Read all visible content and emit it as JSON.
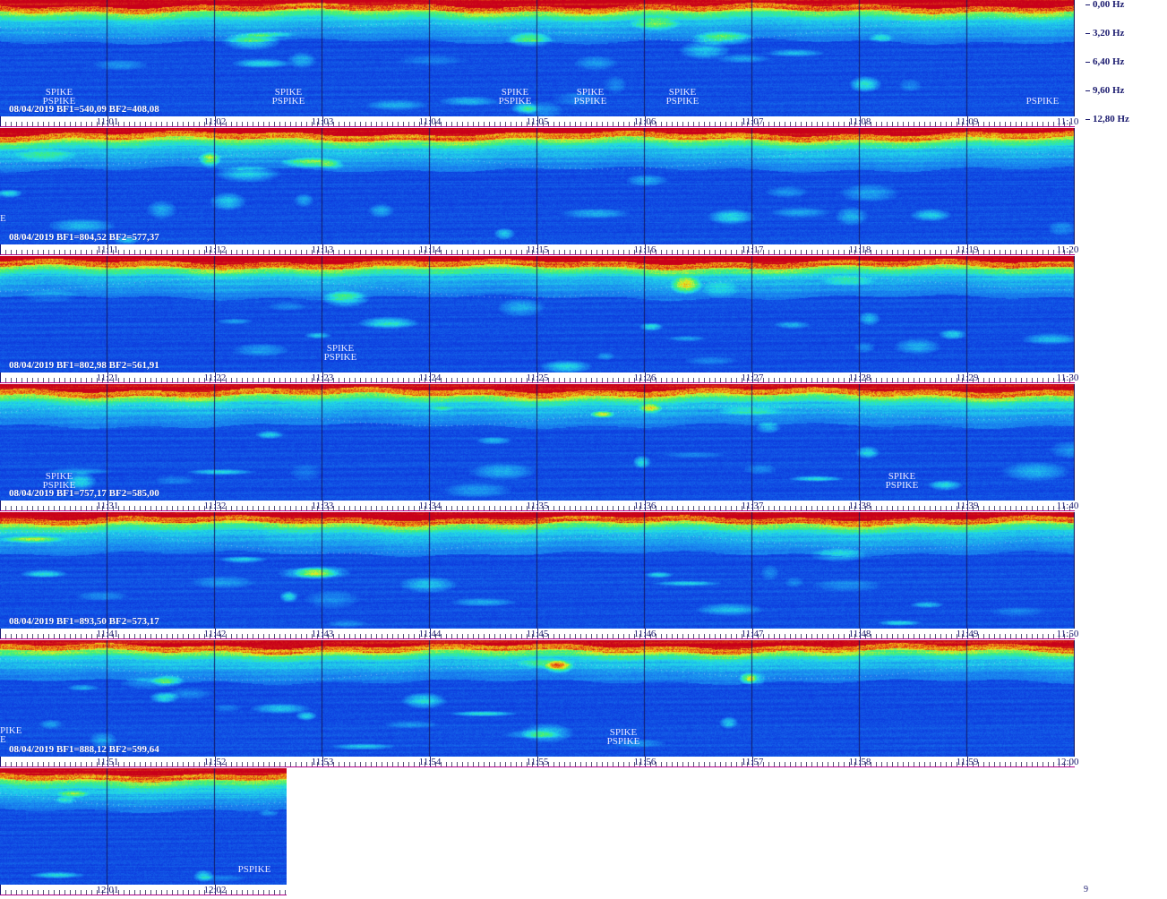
{
  "chart_data": {
    "type": "heatmap",
    "title": "",
    "date": "08/04/2019",
    "yaxis": {
      "labels": [
        "0,00 Hz",
        "3,20 Hz",
        "6,40 Hz",
        "9,60 Hz",
        "12,80 Hz"
      ],
      "range_hz": [
        0,
        12.8
      ]
    },
    "colorscale": [
      "#0a1aa8",
      "#0e3fe0",
      "#1a8af0",
      "#21d9e8",
      "#3ef07a",
      "#e8f020",
      "#f07a10",
      "#c8001a"
    ],
    "rows": [
      {
        "label": "08/04/2019 BF1=540,09 BF2=408,08",
        "ticks": [
          "11:01",
          "11:02",
          "11:03",
          "11:04",
          "11:05",
          "11:06",
          "11:07",
          "11:08",
          "11:09",
          "11:10"
        ],
        "events": [
          {
            "minute": 0.55,
            "lines": [
              "SPIKE",
              "PSPIKE"
            ]
          },
          {
            "minute": 2.68,
            "lines": [
              "SPIKE",
              "PSPIKE"
            ]
          },
          {
            "minute": 4.79,
            "lines": [
              "SPIKE",
              "PSPIKE"
            ]
          },
          {
            "minute": 5.49,
            "lines": [
              "SPIKE",
              "PSPIKE"
            ]
          },
          {
            "minute": 6.35,
            "lines": [
              "SPIKE",
              "PSPIKE"
            ]
          },
          {
            "minute": 9.7,
            "lines": [
              "PSPIKE"
            ]
          }
        ]
      },
      {
        "label": "08/04/2019 BF1=804,52 BF2=577,37",
        "ticks": [
          "11:11",
          "11:12",
          "11:13",
          "11:14",
          "11:15",
          "11:16",
          "11:17",
          "11:18",
          "11:19",
          "11:20"
        ],
        "events": [],
        "edge_text": "E"
      },
      {
        "label": "08/04/2019 BF1=802,98 BF2=561,91",
        "ticks": [
          "11:21",
          "11:22",
          "11:23",
          "11:24",
          "11:25",
          "11:26",
          "11:27",
          "11:28",
          "11:29",
          "11:30"
        ],
        "events": [
          {
            "minute": 3.17,
            "lines": [
              "SPIKE",
              "PSPIKE"
            ]
          }
        ]
      },
      {
        "label": "08/04/2019 BF1=757,17 BF2=585,00",
        "ticks": [
          "11:31",
          "11:32",
          "11:33",
          "11:34",
          "11:35",
          "11:36",
          "11:37",
          "11:38",
          "11:39",
          "11:40"
        ],
        "events": [
          {
            "minute": 0.55,
            "lines": [
              "SPIKE",
              "PSPIKE"
            ]
          },
          {
            "minute": 8.39,
            "lines": [
              "SPIKE",
              "PSPIKE"
            ]
          }
        ]
      },
      {
        "label": "08/04/2019 BF1=893,50 BF2=573,17",
        "ticks": [
          "11:41",
          "11:42",
          "11:43",
          "11:44",
          "11:45",
          "11:46",
          "11:47",
          "11:48",
          "11:49",
          "11:50"
        ],
        "events": []
      },
      {
        "label": "08/04/2019 BF1=888,12 BF2=599,64",
        "ticks": [
          "11:51",
          "11:52",
          "11:53",
          "11:54",
          "11:55",
          "11:56",
          "11:57",
          "11:58",
          "11:59",
          "12:00"
        ],
        "events": [
          {
            "minute": 5.8,
            "lines": [
              "SPIKE",
              "PSPIKE"
            ]
          }
        ],
        "edge_text": "PIKE\nE"
      },
      {
        "label": "",
        "ticks": [
          "12:01",
          "12:02"
        ],
        "partial_minutes": 2.67,
        "events": [
          {
            "minute": 2.37,
            "lines": [
              "PSPIKE"
            ]
          }
        ]
      }
    ]
  },
  "corner_mark": "9"
}
